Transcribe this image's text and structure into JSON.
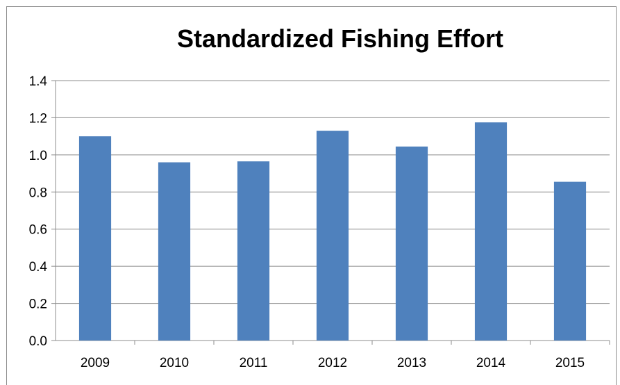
{
  "chart_data": {
    "type": "bar",
    "title": "Standardized Fishing Effort",
    "xlabel": "",
    "ylabel": "",
    "categories": [
      "2009",
      "2010",
      "2011",
      "2012",
      "2013",
      "2014",
      "2015"
    ],
    "values": [
      1.1,
      0.96,
      0.965,
      1.13,
      1.045,
      1.175,
      0.855
    ],
    "ylim": [
      0,
      1.4
    ],
    "yticks": [
      "0.0",
      "0.2",
      "0.4",
      "0.6",
      "0.8",
      "1.0",
      "1.2",
      "1.4"
    ],
    "grid": true,
    "legend": "none",
    "colors": {
      "bar": "#4f81bd",
      "grid": "#8c8c8c",
      "axis": "#8c8c8c"
    }
  }
}
